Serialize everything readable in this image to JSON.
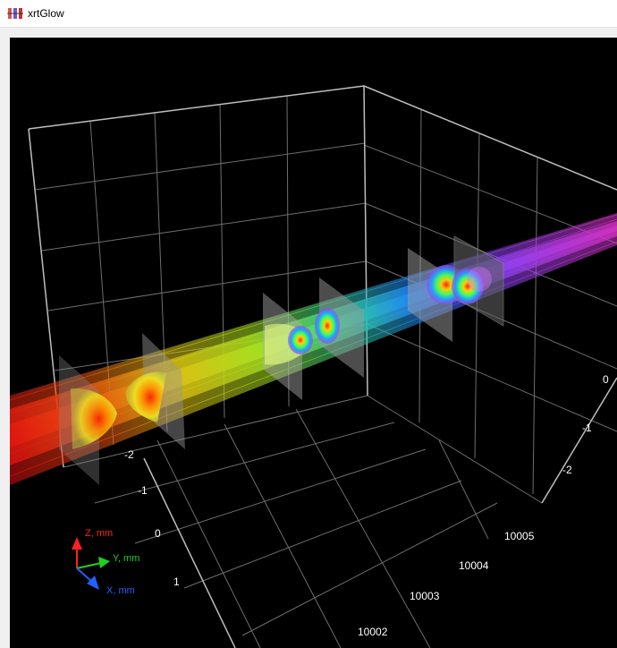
{
  "window": {
    "title": "xrtGlow"
  },
  "icons": {
    "app": "xrt-app-icon"
  },
  "ticks": {
    "left": [
      "-2",
      "-1",
      "0",
      "1"
    ],
    "bottom": [
      "10002",
      "10003",
      "10004",
      "10005"
    ],
    "right": [
      "0",
      "-1",
      "-2"
    ]
  },
  "axes": {
    "z": {
      "label": "Z, mm",
      "color": "#ff2020"
    },
    "y": {
      "label": "Y, mm",
      "color": "#20d020"
    },
    "x": {
      "label": "X, mm",
      "color": "#2060ff"
    }
  },
  "colors": {
    "background": "#000000",
    "grid": "#7a7a7a",
    "frame": "#bdbdbd",
    "screen": "#9a9a9a"
  }
}
